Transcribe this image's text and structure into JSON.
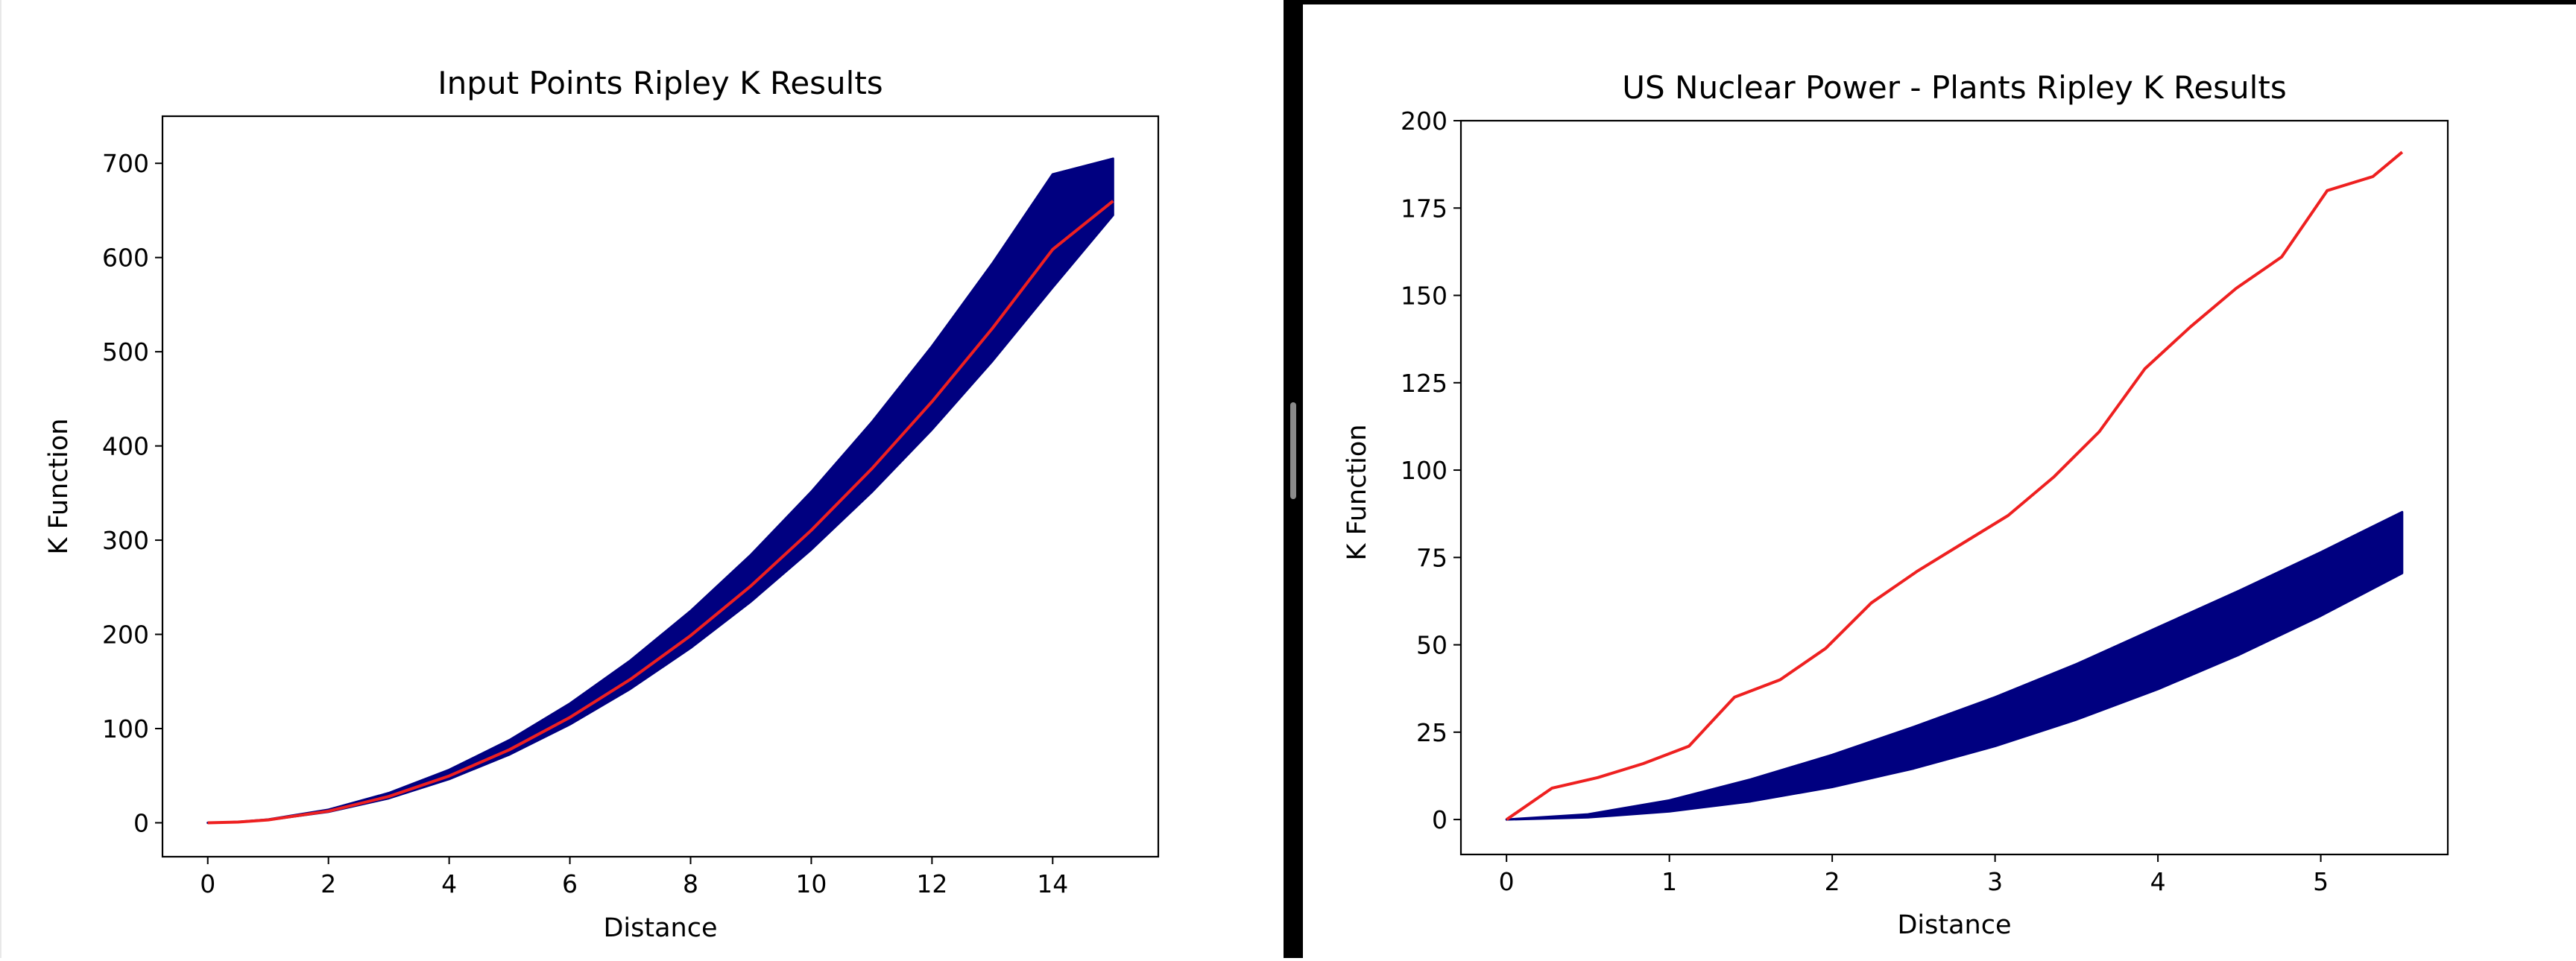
{
  "chart_data": [
    {
      "type": "line",
      "title": "Input Points Ripley K Results",
      "xlabel": "Distance",
      "ylabel": "K Function",
      "xlim": [
        -0.75,
        15.75
      ],
      "ylim": [
        -36,
        750
      ],
      "xticks": [
        0,
        2,
        4,
        6,
        8,
        10,
        12,
        14
      ],
      "xtick_labels": [
        "0",
        "2",
        "4",
        "6",
        "8",
        "10",
        "12",
        "14"
      ],
      "yticks": [
        0,
        100,
        200,
        300,
        400,
        500,
        600,
        700
      ],
      "ytick_labels": [
        "0",
        "100",
        "200",
        "300",
        "400",
        "500",
        "600",
        "700"
      ],
      "grid": false,
      "series": [
        {
          "role": "simulation envelope (many overlapping simulated lines)",
          "color": "#000080",
          "x": [
            0,
            0.5,
            1,
            2,
            3,
            4,
            5,
            6,
            7,
            8,
            9,
            10,
            11,
            12,
            13,
            14,
            15
          ],
          "lower": [
            0,
            0.7,
            2.9,
            11.6,
            26,
            46.4,
            72.5,
            104.4,
            142.1,
            185.6,
            234.9,
            290,
            350.9,
            417.6,
            490.1,
            568.4,
            645
          ],
          "upper": [
            0,
            0.9,
            3.5,
            14,
            31.6,
            56.2,
            87.8,
            126.5,
            172.1,
            224.8,
            284.5,
            351.3,
            425,
            505.8,
            593.6,
            688.4,
            705
          ]
        },
        {
          "role": "observed",
          "color": "#ee2020",
          "x": [
            0,
            0.5,
            1,
            2,
            3,
            4,
            5,
            6,
            7,
            8,
            9,
            10,
            11,
            12,
            13,
            14,
            15
          ],
          "y": [
            0,
            0.8,
            3.1,
            12.4,
            27.9,
            49.7,
            77.6,
            111.8,
            152.1,
            198.7,
            251.5,
            310.5,
            375.7,
            447.1,
            524.7,
            608.6,
            660
          ]
        }
      ]
    },
    {
      "type": "line",
      "title": "US Nuclear Power - Plants Ripley K Results",
      "xlabel": "Distance",
      "ylabel": "K Function",
      "xlim": [
        -0.28,
        5.78
      ],
      "ylim": [
        -10,
        200
      ],
      "xticks": [
        0,
        1,
        2,
        3,
        4,
        5
      ],
      "xtick_labels": [
        "0",
        "1",
        "2",
        "3",
        "4",
        "5"
      ],
      "yticks": [
        0,
        25,
        50,
        75,
        100,
        125,
        150,
        175,
        200
      ],
      "ytick_labels": [
        "0",
        "25",
        "50",
        "75",
        "100",
        "125",
        "150",
        "175",
        "200"
      ],
      "grid": false,
      "series": [
        {
          "role": "simulation envelope (many overlapping simulated lines)",
          "color": "#000080",
          "x": [
            0,
            0.5,
            1,
            1.5,
            2,
            2.5,
            3,
            3.5,
            4,
            4.5,
            5,
            5.5
          ],
          "lower": [
            0,
            0.6,
            2.3,
            5.2,
            9.3,
            14.6,
            21,
            28.6,
            37.3,
            47.2,
            58.3,
            70.5
          ],
          "upper": [
            0,
            1.5,
            5.5,
            11.5,
            18.5,
            26.5,
            35,
            44.5,
            55,
            65.5,
            76.5,
            88
          ]
        },
        {
          "role": "observed",
          "color": "#ee2020",
          "x": [
            0,
            0.28,
            0.56,
            0.84,
            1.12,
            1.4,
            1.68,
            1.96,
            2.24,
            2.52,
            2.8,
            3.08,
            3.36,
            3.64,
            3.92,
            4.2,
            4.48,
            4.76,
            5.04,
            5.32,
            5.5
          ],
          "y": [
            0,
            9,
            12,
            16,
            21,
            35,
            40,
            49,
            62,
            71,
            79,
            87,
            98,
            111,
            129,
            141,
            152,
            161,
            180,
            184,
            191
          ]
        }
      ]
    }
  ]
}
